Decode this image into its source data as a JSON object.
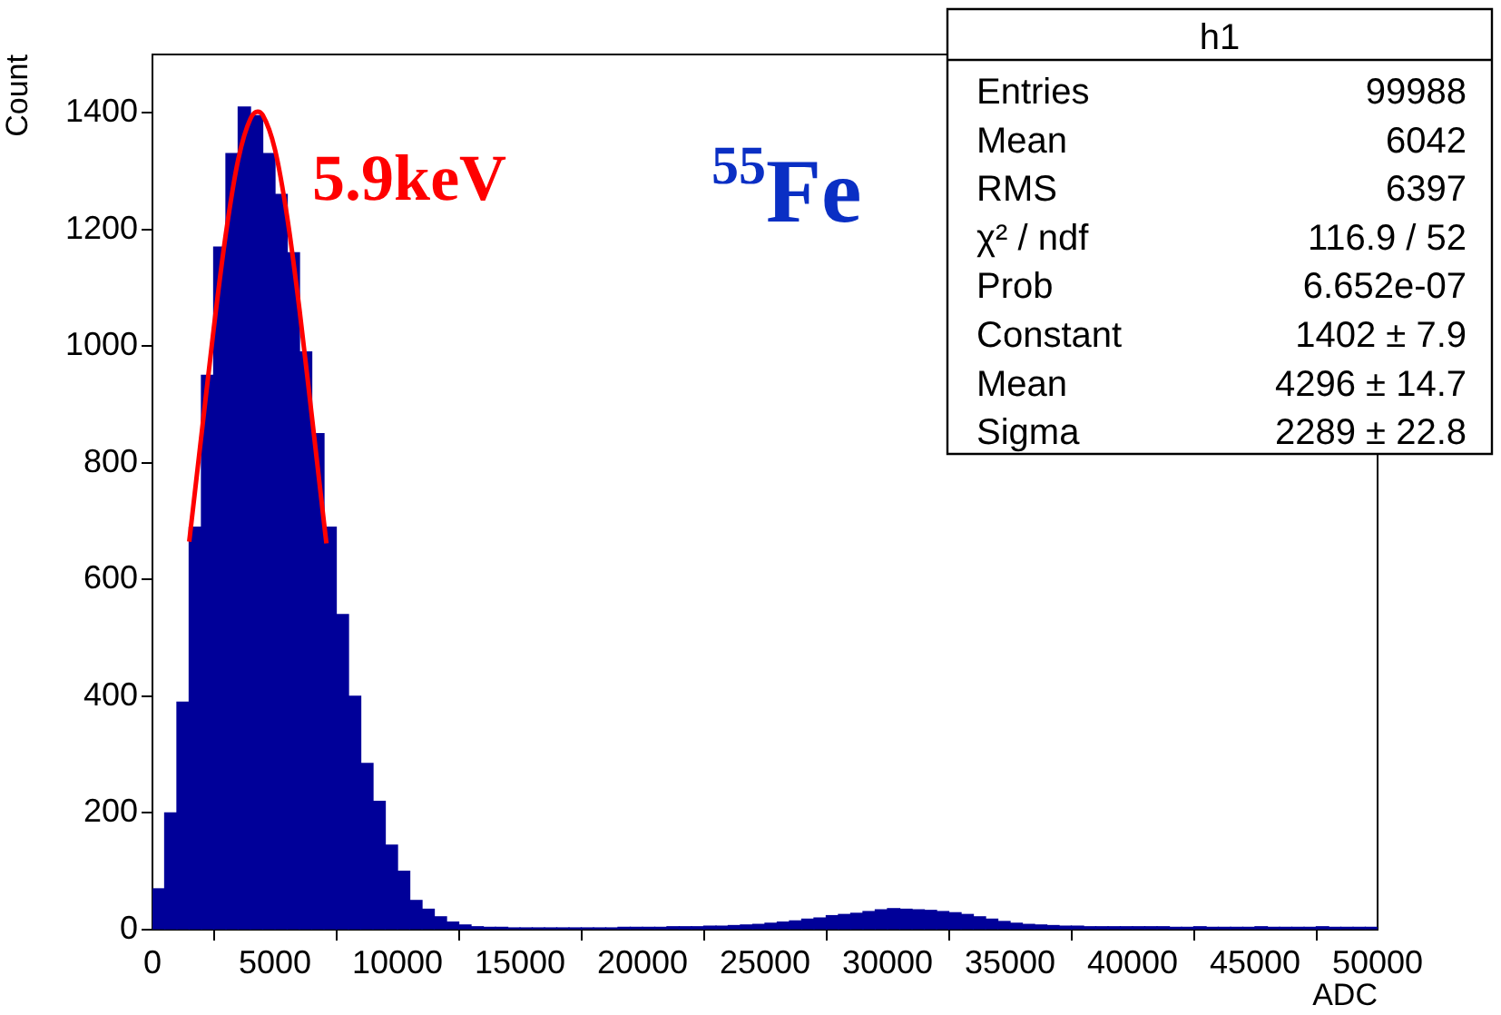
{
  "chart_data": {
    "type": "histogram",
    "xlabel": "ADC",
    "ylabel": "Count",
    "color": "#000099",
    "bins": [
      0,
      500,
      1000,
      1500,
      2000,
      2500,
      3000,
      3500,
      4000,
      4500,
      5000,
      5500,
      6000,
      6500,
      7000,
      7500,
      8000,
      8500,
      9000,
      9500,
      10000,
      10500,
      11000,
      11500,
      12000,
      12500,
      13000,
      13500,
      14000,
      14500,
      15000,
      15500,
      16000,
      16500,
      17000,
      17500,
      18000,
      18500,
      19000,
      19500,
      20000,
      20500,
      21000,
      21500,
      22000,
      22500,
      23000,
      23500,
      24000,
      24500,
      25000,
      25500,
      26000,
      26500,
      27000,
      27500,
      28000,
      28500,
      29000,
      29500,
      30000,
      30500,
      31000,
      31500,
      32000,
      32500,
      33000,
      33500,
      34000,
      34500,
      35000,
      35500,
      36000,
      36500,
      37000,
      37500,
      38000,
      38500,
      39000,
      39500,
      40000,
      40500,
      41000,
      41500,
      42000,
      42500,
      43000,
      43500,
      44000,
      44500,
      45000,
      45500,
      46000,
      46500,
      47000,
      47500,
      48000,
      48500,
      49000,
      49500,
      50000
    ],
    "values": [
      70,
      200,
      390,
      690,
      950,
      1170,
      1330,
      1410,
      1395,
      1330,
      1260,
      1160,
      990,
      850,
      690,
      540,
      400,
      285,
      220,
      145,
      100,
      50,
      35,
      22,
      13,
      8,
      5,
      4,
      4,
      3,
      3,
      3,
      3,
      3,
      3,
      3,
      3,
      3,
      4,
      4,
      4,
      4,
      5,
      5,
      5,
      6,
      6,
      7,
      8,
      9,
      11,
      13,
      15,
      18,
      20,
      24,
      26,
      28,
      31,
      34,
      36,
      35,
      34,
      33,
      31,
      29,
      26,
      22,
      18,
      14,
      11,
      9,
      8,
      7,
      6,
      6,
      5,
      5,
      5,
      5,
      5,
      5,
      5,
      4,
      4,
      5,
      4,
      4,
      4,
      4,
      5,
      4,
      4,
      4,
      4,
      5,
      4,
      4,
      4,
      4
    ],
    "series": [
      {
        "type": "line",
        "color": "#ff0000",
        "x": [
          1500,
          2000,
          2500,
          3000,
          3500,
          4000,
          4296,
          4500,
          5000,
          5500,
          6000,
          6500,
          7000,
          7100
        ],
        "values": [
          665,
          848,
          1030,
          1194,
          1320,
          1390,
          1402,
          1396,
          1337,
          1221,
          1063,
          882,
          698,
          662
        ]
      }
    ],
    "xlim": [
      0,
      50000
    ],
    "xticks": [
      0,
      5000,
      10000,
      15000,
      20000,
      25000,
      30000,
      35000,
      40000,
      45000,
      50000
    ],
    "ylim": [
      0,
      1500
    ],
    "yticks": [
      0,
      200,
      400,
      600,
      800,
      1000,
      1200,
      1400
    ],
    "grid": false,
    "legend": false,
    "annotations": [
      {
        "text": "5.9keV",
        "x": 4300,
        "y": 1400
      },
      "$^{55}$Fe",
      "h1",
      "Entries",
      "99988",
      "Mean",
      "6042",
      "RMS",
      "6397",
      "χ² / ndf",
      "116.9 / 52",
      "Prob",
      "6.652e-07",
      "Constant",
      "1402 ± 7.9",
      "Mean",
      "4296 ± 14.7",
      "Sigma",
      "2289 ± 22.8"
    ]
  }
}
